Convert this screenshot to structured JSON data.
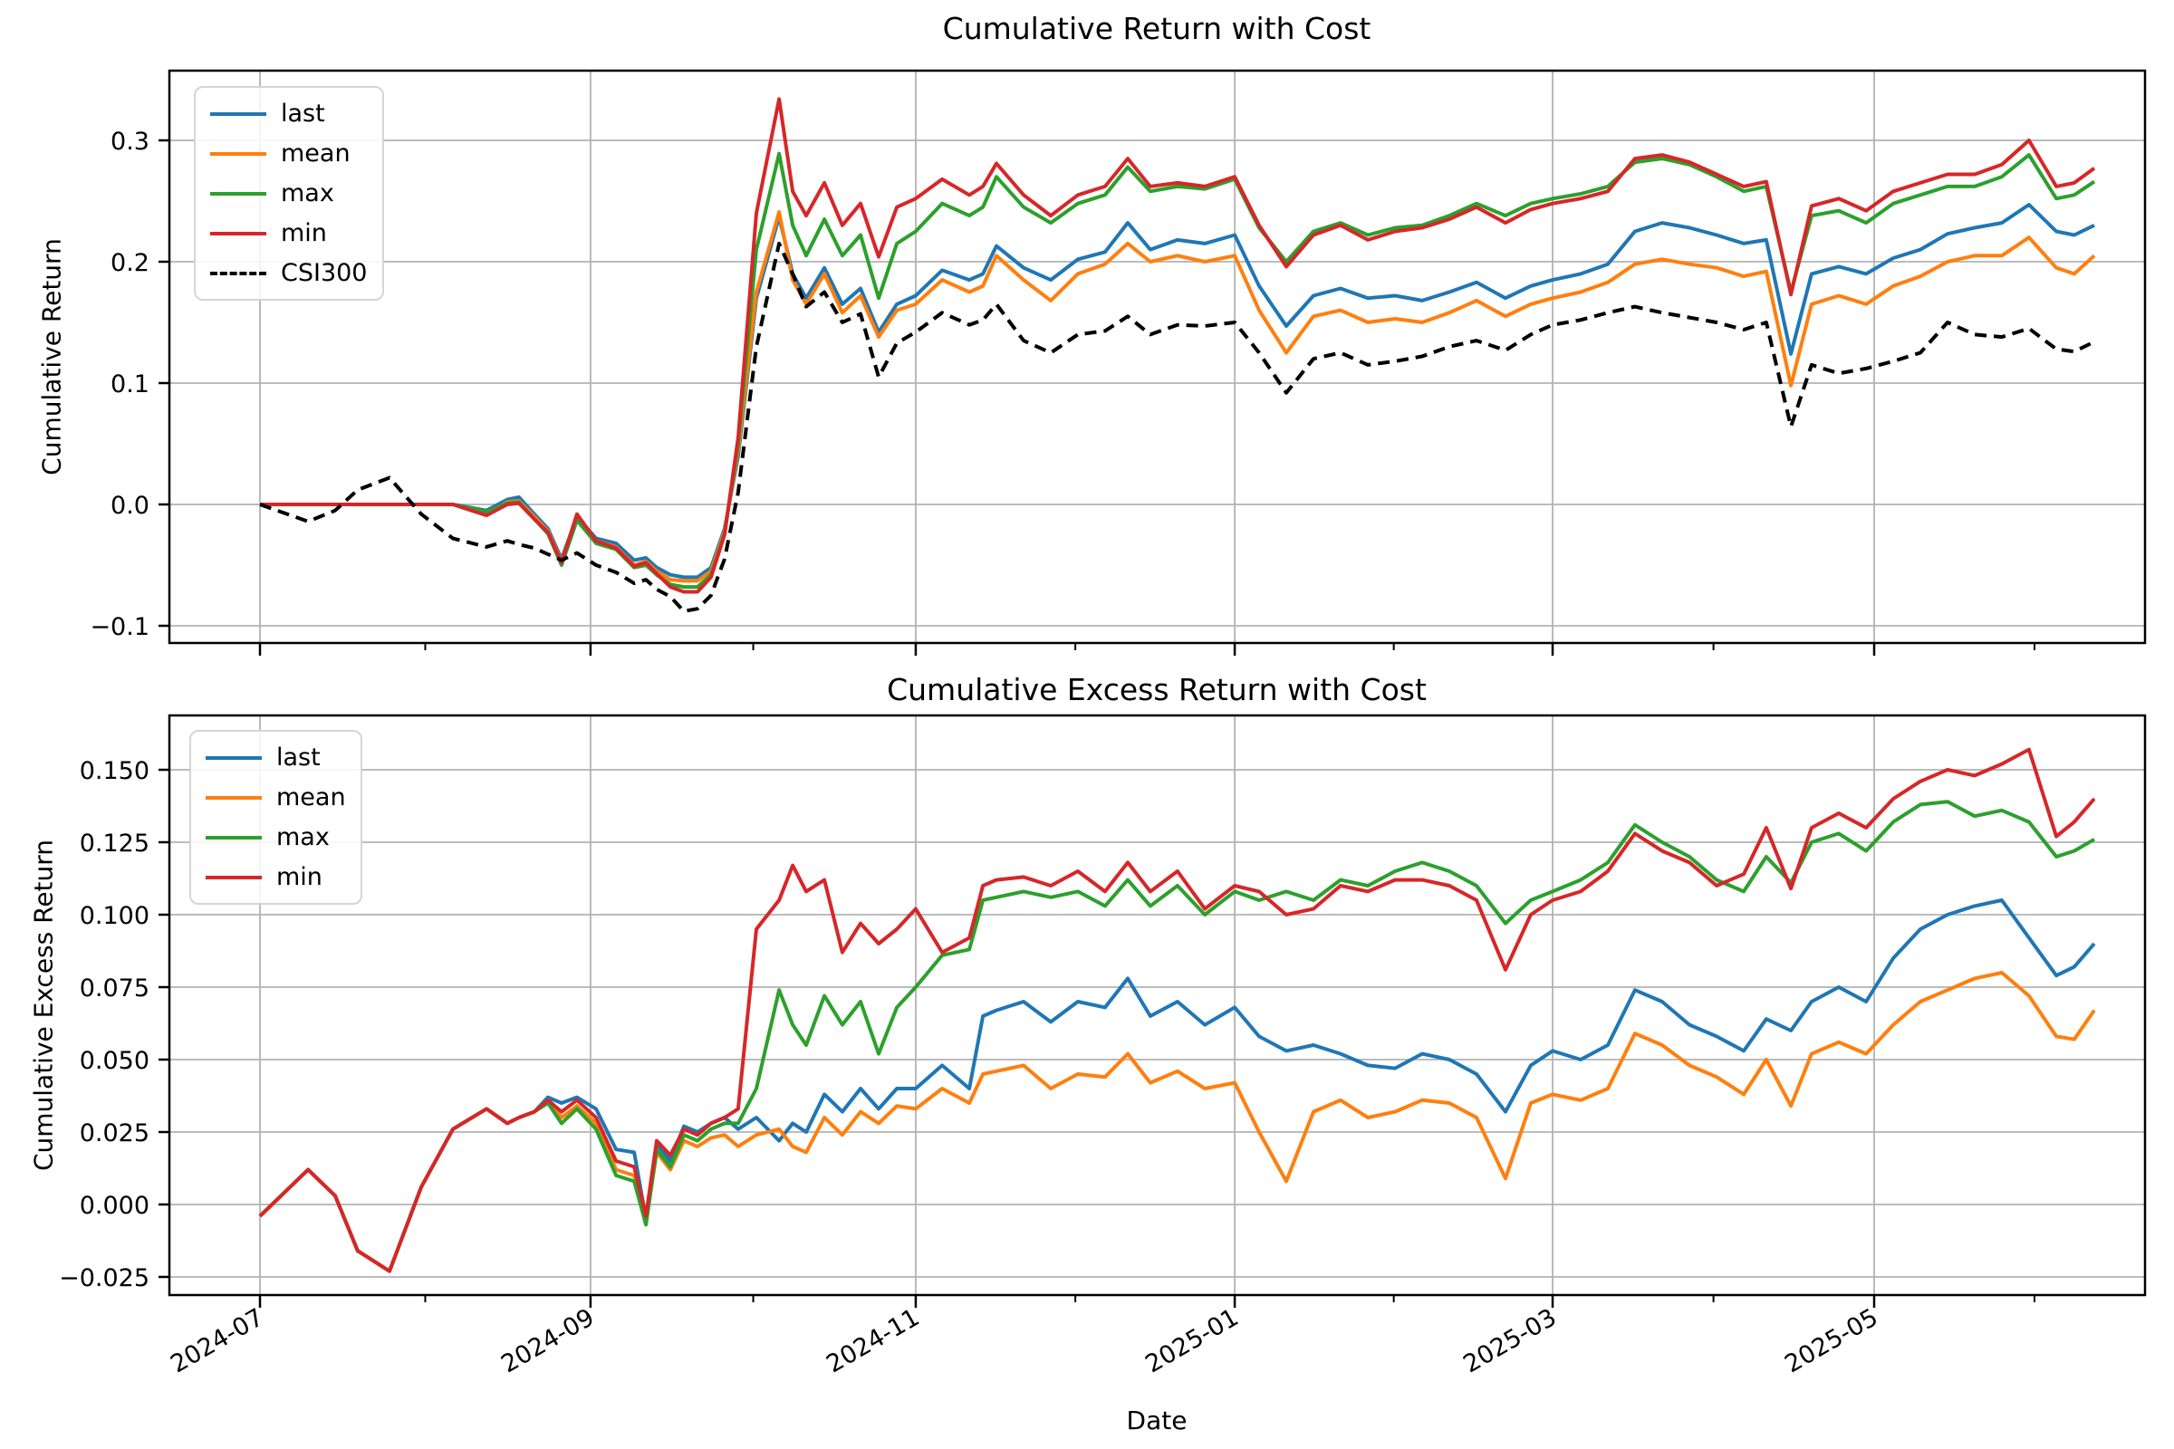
{
  "figure": {
    "background": "#ffffff",
    "grid_color": "#b3b3b3",
    "spine_color": "#000000",
    "accent_colors": {
      "blue": "#1f77b4",
      "orange": "#ff7f0e",
      "green": "#2ca02c",
      "red": "#d62728",
      "black": "#000000"
    }
  },
  "chart_data": [
    {
      "type": "line",
      "title": "Cumulative Return with Cost",
      "ylabel": "Cumulative Return",
      "xlabel": "",
      "grid": true,
      "legend_position": "upper left",
      "legend": [
        "last",
        "mean",
        "max",
        "min",
        "CSI300"
      ],
      "ylim": [
        -0.114,
        0.3575
      ],
      "y_ticks": [
        0.3,
        0.2,
        0.1,
        0.0,
        -0.1
      ],
      "y_tick_labels": [
        "0.3",
        "0.2",
        "0.1",
        "0.0",
        "−0.1"
      ],
      "x_tick_labels": [],
      "x_major_ticks_t": [
        0.0,
        0.1802,
        0.3575,
        0.5314,
        0.7047,
        0.88
      ],
      "x_minor_ticks_t": [
        0.0901,
        0.2689,
        0.4445,
        0.6181,
        0.7924,
        0.9674
      ],
      "t": [
        0,
        0.0262,
        0.041,
        0.0533,
        0.0706,
        0.0879,
        0.1052,
        0.1235,
        0.1348,
        0.1412,
        0.1496,
        0.157,
        0.1644,
        0.1728,
        0.1832,
        0.1941,
        0.204,
        0.2104,
        0.2163,
        0.2237,
        0.2311,
        0.2385,
        0.2459,
        0.2533,
        0.2607,
        0.2706,
        0.283,
        0.2904,
        0.2978,
        0.3077,
        0.3175,
        0.3274,
        0.3373,
        0.3472,
        0.3575,
        0.3719,
        0.3867,
        0.3941,
        0.4015,
        0.4163,
        0.4311,
        0.4459,
        0.4607,
        0.4731,
        0.4854,
        0.5002,
        0.5151,
        0.5314,
        0.5447,
        0.5595,
        0.5743,
        0.5891,
        0.604,
        0.6188,
        0.6336,
        0.6484,
        0.6632,
        0.679,
        0.6928,
        0.7047,
        0.72,
        0.7348,
        0.7496,
        0.7644,
        0.7793,
        0.7941,
        0.8089,
        0.8212,
        0.8346,
        0.8459,
        0.8607,
        0.8756,
        0.8904,
        0.9052,
        0.92,
        0.9348,
        0.9496,
        0.9644,
        0.9793,
        0.9891,
        1
      ],
      "series": [
        {
          "name": "last",
          "color": "#1f77b4",
          "dash": null,
          "values": [
            0,
            0,
            0,
            0,
            0,
            0,
            0,
            -0.005,
            0.004,
            0.006,
            -0.008,
            -0.02,
            -0.045,
            -0.01,
            -0.028,
            -0.032,
            -0.046,
            -0.044,
            -0.052,
            -0.058,
            -0.06,
            -0.06,
            -0.052,
            -0.02,
            0.04,
            0.17,
            0.237,
            0.19,
            0.17,
            0.195,
            0.165,
            0.178,
            0.142,
            0.165,
            0.172,
            0.193,
            0.185,
            0.19,
            0.213,
            0.195,
            0.185,
            0.202,
            0.208,
            0.232,
            0.21,
            0.218,
            0.215,
            0.222,
            0.18,
            0.147,
            0.172,
            0.178,
            0.17,
            0.172,
            0.168,
            0.175,
            0.183,
            0.17,
            0.18,
            0.185,
            0.19,
            0.198,
            0.225,
            0.232,
            0.228,
            0.222,
            0.215,
            0.218,
            0.124,
            0.19,
            0.196,
            0.19,
            0.203,
            0.21,
            0.223,
            0.228,
            0.232,
            0.247,
            0.225,
            0.222,
            0.23
          ]
        },
        {
          "name": "mean",
          "color": "#ff7f0e",
          "dash": null,
          "values": [
            0,
            0,
            0,
            0,
            0,
            0,
            0,
            -0.008,
            0.002,
            0.003,
            -0.01,
            -0.022,
            -0.047,
            -0.012,
            -0.03,
            -0.035,
            -0.05,
            -0.047,
            -0.055,
            -0.062,
            -0.063,
            -0.063,
            -0.055,
            -0.022,
            0.045,
            0.175,
            0.241,
            0.185,
            0.165,
            0.19,
            0.158,
            0.172,
            0.138,
            0.16,
            0.165,
            0.185,
            0.175,
            0.18,
            0.205,
            0.185,
            0.168,
            0.19,
            0.198,
            0.215,
            0.2,
            0.205,
            0.2,
            0.205,
            0.16,
            0.125,
            0.155,
            0.16,
            0.15,
            0.153,
            0.15,
            0.158,
            0.168,
            0.155,
            0.165,
            0.17,
            0.175,
            0.183,
            0.198,
            0.202,
            0.198,
            0.195,
            0.188,
            0.192,
            0.098,
            0.165,
            0.172,
            0.165,
            0.18,
            0.188,
            0.2,
            0.205,
            0.205,
            0.22,
            0.195,
            0.19,
            0.205
          ]
        },
        {
          "name": "max",
          "color": "#2ca02c",
          "dash": null,
          "values": [
            0,
            0,
            0,
            0,
            0,
            0,
            0,
            -0.006,
            0.001,
            0.002,
            -0.012,
            -0.024,
            -0.05,
            -0.013,
            -0.032,
            -0.037,
            -0.052,
            -0.05,
            -0.058,
            -0.066,
            -0.068,
            -0.068,
            -0.058,
            -0.024,
            0.05,
            0.21,
            0.289,
            0.23,
            0.205,
            0.235,
            0.205,
            0.222,
            0.17,
            0.215,
            0.225,
            0.248,
            0.238,
            0.245,
            0.27,
            0.245,
            0.232,
            0.248,
            0.255,
            0.278,
            0.258,
            0.262,
            0.26,
            0.268,
            0.228,
            0.2,
            0.225,
            0.232,
            0.222,
            0.228,
            0.23,
            0.238,
            0.248,
            0.238,
            0.248,
            0.252,
            0.256,
            0.262,
            0.282,
            0.285,
            0.28,
            0.27,
            0.258,
            0.262,
            0.175,
            0.238,
            0.242,
            0.232,
            0.248,
            0.255,
            0.262,
            0.262,
            0.27,
            0.288,
            0.252,
            0.255,
            0.266
          ]
        },
        {
          "name": "min",
          "color": "#d62728",
          "dash": null,
          "values": [
            0,
            0,
            0,
            0,
            0,
            0,
            0,
            -0.009,
            0,
            0.001,
            -0.012,
            -0.023,
            -0.048,
            -0.008,
            -0.03,
            -0.036,
            -0.051,
            -0.048,
            -0.057,
            -0.068,
            -0.072,
            -0.072,
            -0.06,
            -0.025,
            0.055,
            0.24,
            0.334,
            0.258,
            0.238,
            0.265,
            0.23,
            0.248,
            0.204,
            0.245,
            0.252,
            0.268,
            0.255,
            0.262,
            0.281,
            0.255,
            0.238,
            0.255,
            0.262,
            0.285,
            0.262,
            0.265,
            0.262,
            0.27,
            0.23,
            0.196,
            0.222,
            0.23,
            0.218,
            0.225,
            0.228,
            0.235,
            0.245,
            0.232,
            0.243,
            0.248,
            0.252,
            0.258,
            0.285,
            0.288,
            0.282,
            0.272,
            0.262,
            0.266,
            0.173,
            0.246,
            0.252,
            0.242,
            0.258,
            0.265,
            0.272,
            0.272,
            0.28,
            0.3,
            0.262,
            0.265,
            0.277
          ]
        },
        {
          "name": "CSI300",
          "color": "#000000",
          "dash": "13 8",
          "values": [
            0,
            -0.014,
            -0.005,
            0.012,
            0.022,
            -0.008,
            -0.028,
            -0.035,
            -0.03,
            -0.033,
            -0.036,
            -0.041,
            -0.046,
            -0.04,
            -0.05,
            -0.056,
            -0.065,
            -0.062,
            -0.07,
            -0.076,
            -0.088,
            -0.086,
            -0.075,
            -0.045,
            0.01,
            0.13,
            0.215,
            0.19,
            0.163,
            0.175,
            0.15,
            0.157,
            0.105,
            0.133,
            0.142,
            0.158,
            0.148,
            0.152,
            0.165,
            0.135,
            0.125,
            0.14,
            0.143,
            0.155,
            0.14,
            0.148,
            0.147,
            0.15,
            0.125,
            0.092,
            0.12,
            0.125,
            0.115,
            0.118,
            0.122,
            0.13,
            0.135,
            0.127,
            0.14,
            0.148,
            0.152,
            0.158,
            0.163,
            0.158,
            0.154,
            0.15,
            0.144,
            0.15,
            0.064,
            0.115,
            0.108,
            0.112,
            0.118,
            0.125,
            0.15,
            0.14,
            0.138,
            0.145,
            0.128,
            0.126,
            0.134
          ]
        }
      ]
    },
    {
      "type": "line",
      "title": "Cumulative Excess Return with Cost",
      "ylabel": "Cumulative Excess Return",
      "xlabel": "Date",
      "grid": true,
      "legend_position": "upper left",
      "legend": [
        "last",
        "mean",
        "max",
        "min"
      ],
      "ylim": [
        -0.03125,
        0.16875
      ],
      "y_ticks": [
        0.15,
        0.125,
        0.1,
        0.075,
        0.05,
        0.025,
        0.0,
        -0.025
      ],
      "y_tick_labels": [
        "0.150",
        "0.125",
        "0.100",
        "0.075",
        "0.050",
        "0.025",
        "0.000",
        "−0.025"
      ],
      "x_tick_labels": [
        "2024-07",
        "2024-09",
        "2024-11",
        "2025-01",
        "2025-03",
        "2025-05"
      ],
      "x_major_ticks_t": [
        0.0,
        0.1802,
        0.3575,
        0.5314,
        0.7047,
        0.88
      ],
      "x_minor_ticks_t": [
        0.0901,
        0.2689,
        0.4445,
        0.6181,
        0.7924,
        0.9674
      ],
      "t": [
        0,
        0.0262,
        0.041,
        0.0533,
        0.0706,
        0.0879,
        0.1052,
        0.1235,
        0.1348,
        0.1412,
        0.1496,
        0.157,
        0.1644,
        0.1728,
        0.1832,
        0.1941,
        0.204,
        0.2104,
        0.2163,
        0.2237,
        0.2311,
        0.2385,
        0.2459,
        0.2533,
        0.2607,
        0.2706,
        0.283,
        0.2904,
        0.2978,
        0.3077,
        0.3175,
        0.3274,
        0.3373,
        0.3472,
        0.3575,
        0.3719,
        0.3867,
        0.3941,
        0.4015,
        0.4163,
        0.4311,
        0.4459,
        0.4607,
        0.4731,
        0.4854,
        0.5002,
        0.5151,
        0.5314,
        0.5447,
        0.5595,
        0.5743,
        0.5891,
        0.604,
        0.6188,
        0.6336,
        0.6484,
        0.6632,
        0.679,
        0.6928,
        0.7047,
        0.72,
        0.7348,
        0.7496,
        0.7644,
        0.7793,
        0.7941,
        0.8089,
        0.8212,
        0.8346,
        0.8459,
        0.8607,
        0.8756,
        0.8904,
        0.9052,
        0.92,
        0.9348,
        0.9496,
        0.9644,
        0.9793,
        0.9891,
        1
      ],
      "series": [
        {
          "name": "last",
          "color": "#1f77b4",
          "dash": null,
          "values": [
            -0.004,
            0.012,
            0.003,
            -0.016,
            -0.023,
            0.006,
            0.026,
            0.033,
            0.028,
            0.03,
            0.032,
            0.037,
            0.035,
            0.037,
            0.033,
            0.019,
            0.018,
            -0.005,
            0.021,
            0.015,
            0.027,
            0.025,
            0.028,
            0.03,
            0.026,
            0.03,
            0.022,
            0.028,
            0.025,
            0.038,
            0.032,
            0.04,
            0.033,
            0.04,
            0.04,
            0.048,
            0.04,
            0.065,
            0.067,
            0.07,
            0.063,
            0.07,
            0.068,
            0.078,
            0.065,
            0.07,
            0.062,
            0.068,
            0.058,
            0.053,
            0.055,
            0.052,
            0.048,
            0.047,
            0.052,
            0.05,
            0.045,
            0.032,
            0.048,
            0.053,
            0.05,
            0.055,
            0.074,
            0.07,
            0.062,
            0.058,
            0.053,
            0.064,
            0.06,
            0.07,
            0.075,
            0.07,
            0.085,
            0.095,
            0.1,
            0.103,
            0.105,
            0.092,
            0.079,
            0.082,
            0.09
          ]
        },
        {
          "name": "mean",
          "color": "#ff7f0e",
          "dash": null,
          "values": [
            -0.004,
            0.012,
            0.003,
            -0.016,
            -0.023,
            0.006,
            0.026,
            0.033,
            0.028,
            0.03,
            0.032,
            0.036,
            0.03,
            0.034,
            0.028,
            0.012,
            0.01,
            -0.006,
            0.018,
            0.012,
            0.022,
            0.02,
            0.023,
            0.024,
            0.02,
            0.024,
            0.026,
            0.02,
            0.018,
            0.03,
            0.024,
            0.032,
            0.028,
            0.034,
            0.033,
            0.04,
            0.035,
            0.045,
            0.046,
            0.048,
            0.04,
            0.045,
            0.044,
            0.052,
            0.042,
            0.046,
            0.04,
            0.042,
            0.025,
            0.008,
            0.032,
            0.036,
            0.03,
            0.032,
            0.036,
            0.035,
            0.03,
            0.009,
            0.035,
            0.038,
            0.036,
            0.04,
            0.059,
            0.055,
            0.048,
            0.044,
            0.038,
            0.05,
            0.034,
            0.052,
            0.056,
            0.052,
            0.062,
            0.07,
            0.074,
            0.078,
            0.08,
            0.072,
            0.058,
            0.057,
            0.067
          ]
        },
        {
          "name": "max",
          "color": "#2ca02c",
          "dash": null,
          "values": [
            -0.004,
            0.012,
            0.003,
            -0.016,
            -0.023,
            0.006,
            0.026,
            0.033,
            0.028,
            0.03,
            0.032,
            0.035,
            0.028,
            0.033,
            0.026,
            0.01,
            0.008,
            -0.007,
            0.019,
            0.013,
            0.024,
            0.022,
            0.026,
            0.028,
            0.028,
            0.04,
            0.074,
            0.062,
            0.055,
            0.072,
            0.062,
            0.07,
            0.052,
            0.068,
            0.075,
            0.086,
            0.088,
            0.105,
            0.106,
            0.108,
            0.106,
            0.108,
            0.103,
            0.112,
            0.103,
            0.11,
            0.1,
            0.108,
            0.105,
            0.108,
            0.105,
            0.112,
            0.11,
            0.115,
            0.118,
            0.115,
            0.11,
            0.097,
            0.105,
            0.108,
            0.112,
            0.118,
            0.131,
            0.125,
            0.12,
            0.112,
            0.108,
            0.12,
            0.111,
            0.125,
            0.128,
            0.122,
            0.132,
            0.138,
            0.139,
            0.134,
            0.136,
            0.132,
            0.12,
            0.122,
            0.126
          ]
        },
        {
          "name": "min",
          "color": "#d62728",
          "dash": null,
          "values": [
            -0.004,
            0.012,
            0.003,
            -0.016,
            -0.023,
            0.006,
            0.026,
            0.033,
            0.028,
            0.03,
            0.032,
            0.036,
            0.032,
            0.036,
            0.03,
            0.015,
            0.013,
            -0.004,
            0.022,
            0.017,
            0.026,
            0.024,
            0.028,
            0.03,
            0.033,
            0.095,
            0.105,
            0.117,
            0.108,
            0.112,
            0.087,
            0.097,
            0.09,
            0.095,
            0.102,
            0.087,
            0.092,
            0.11,
            0.112,
            0.113,
            0.11,
            0.115,
            0.108,
            0.118,
            0.108,
            0.115,
            0.102,
            0.11,
            0.108,
            0.1,
            0.102,
            0.11,
            0.108,
            0.112,
            0.112,
            0.11,
            0.105,
            0.081,
            0.1,
            0.105,
            0.108,
            0.115,
            0.128,
            0.122,
            0.118,
            0.11,
            0.114,
            0.13,
            0.109,
            0.13,
            0.135,
            0.13,
            0.14,
            0.146,
            0.15,
            0.148,
            0.152,
            0.157,
            0.127,
            0.132,
            0.14
          ]
        }
      ]
    }
  ]
}
